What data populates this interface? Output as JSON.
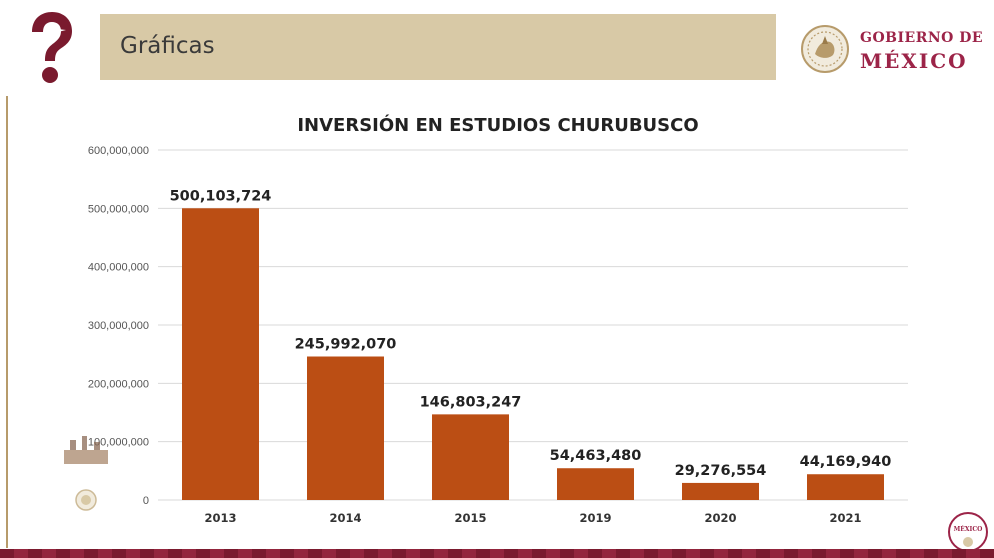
{
  "header": {
    "title": "Gráficas"
  },
  "brand": {
    "line1": "GOBIERNO DE",
    "line2": "MÉXICO",
    "color": "#9c2448",
    "corner_text": "MÉXICO"
  },
  "colors": {
    "bar": "#bb4e14",
    "grid": "#d9d9d9"
  },
  "icons": {
    "help": "question-mark-icon",
    "seal": "national-seal-icon"
  },
  "chart_data": {
    "type": "bar",
    "title": "INVERSIÓN EN ESTUDIOS CHURUBUSCO",
    "categories": [
      "2013",
      "2014",
      "2015",
      "2019",
      "2020",
      "2021"
    ],
    "values": [
      500103724,
      245992070,
      146803247,
      54463480,
      29276554,
      44169940
    ],
    "data_labels": [
      "500,103,724",
      "245,992,070",
      "146,803,247",
      "54,463,480",
      "29,276,554",
      "44,169,940"
    ],
    "ylim": [
      0,
      600000000
    ],
    "yticks": [
      0,
      100000000,
      200000000,
      300000000,
      400000000,
      500000000,
      600000000
    ],
    "ytick_labels": [
      "0",
      "100,000,000",
      "200,000,000",
      "300,000,000",
      "400,000,000",
      "500,000,000",
      "600,000,000"
    ],
    "xlabel": "",
    "ylabel": "",
    "grid": true,
    "legend": "none"
  }
}
